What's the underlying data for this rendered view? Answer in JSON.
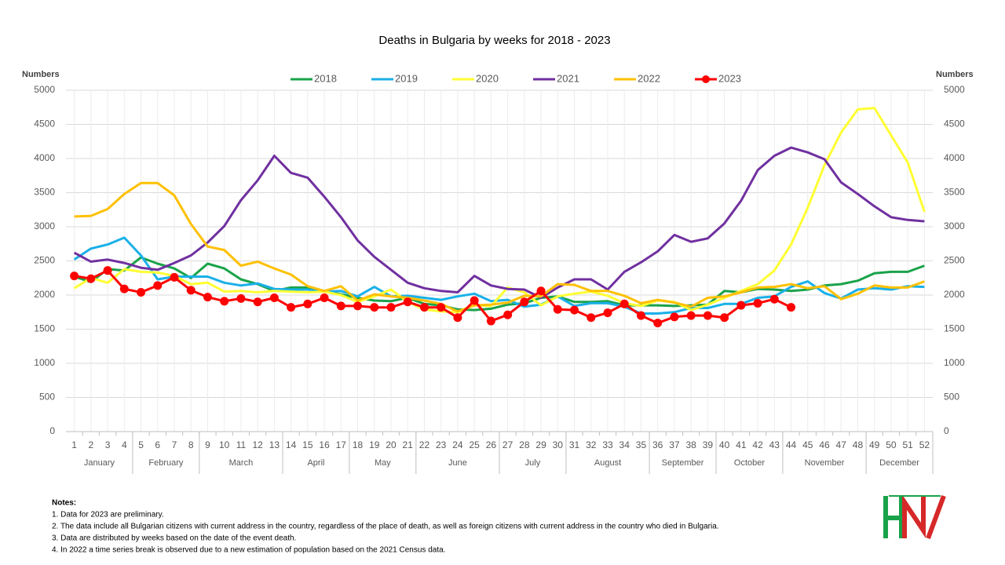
{
  "chart_data": {
    "type": "line",
    "title": "Deaths in Bulgaria by weeks for 2018 - 2023",
    "ylabel": "Numbers",
    "y2label": "Numbers",
    "categories": [
      1,
      2,
      3,
      4,
      5,
      6,
      7,
      8,
      9,
      10,
      11,
      12,
      13,
      14,
      15,
      16,
      17,
      18,
      19,
      20,
      21,
      22,
      23,
      24,
      25,
      26,
      27,
      28,
      29,
      30,
      31,
      32,
      33,
      34,
      35,
      36,
      37,
      38,
      39,
      40,
      41,
      42,
      43,
      44,
      45,
      46,
      47,
      48,
      49,
      50,
      51,
      52
    ],
    "month_groups": [
      {
        "label": "January",
        "from": 1,
        "to": 4
      },
      {
        "label": "February",
        "from": 5,
        "to": 8
      },
      {
        "label": "March",
        "from": 9,
        "to": 13
      },
      {
        "label": "April",
        "from": 14,
        "to": 17
      },
      {
        "label": "May",
        "from": 18,
        "to": 21
      },
      {
        "label": "June",
        "from": 22,
        "to": 26
      },
      {
        "label": "July",
        "from": 27,
        "to": 30
      },
      {
        "label": "August",
        "from": 31,
        "to": 35
      },
      {
        "label": "September",
        "from": 36,
        "to": 39
      },
      {
        "label": "October",
        "from": 40,
        "to": 43
      },
      {
        "label": "November",
        "from": 44,
        "to": 48
      },
      {
        "label": "December",
        "from": 49,
        "to": 52
      }
    ],
    "ylim": [
      0,
      5000
    ],
    "yticks": [
      0,
      500,
      1000,
      1500,
      2000,
      2500,
      3000,
      3500,
      4000,
      4500,
      5000
    ],
    "y2lim": [
      0,
      5000
    ],
    "y2ticks": [
      0,
      500,
      1000,
      1500,
      2000,
      2500,
      3000,
      3500,
      4000,
      4500,
      5000
    ],
    "grid": true,
    "legend": "top",
    "series": [
      {
        "name": "2018",
        "color": "#1aa34a",
        "values": [
          2270,
          2190,
          2380,
          2360,
          2550,
          2460,
          2390,
          2250,
          2460,
          2390,
          2230,
          2160,
          2060,
          2110,
          2110,
          2060,
          2010,
          1960,
          1920,
          1910,
          1960,
          1870,
          1850,
          1790,
          1780,
          1800,
          1860,
          1880,
          1960,
          1980,
          1900,
          1900,
          1910,
          1850,
          1850,
          1850,
          1840,
          1850,
          1860,
          2060,
          2040,
          2090,
          2080,
          2060,
          2080,
          2140,
          2160,
          2210,
          2320,
          2340,
          2340,
          2430
        ]
      },
      {
        "name": "2019",
        "color": "#1ab0e8",
        "values": [
          2520,
          2680,
          2740,
          2840,
          2580,
          2230,
          2270,
          2270,
          2270,
          2180,
          2140,
          2170,
          2090,
          2080,
          2080,
          2050,
          2060,
          1980,
          2120,
          1980,
          1990,
          1960,
          1930,
          1980,
          2020,
          1910,
          1930,
          1830,
          1860,
          1980,
          1840,
          1880,
          1880,
          1830,
          1730,
          1730,
          1750,
          1810,
          1810,
          1870,
          1870,
          1960,
          1980,
          2120,
          2200,
          2030,
          1950,
          2080,
          2100,
          2080,
          2130,
          2120
        ]
      },
      {
        "name": "2020",
        "color": "#ffff33",
        "values": [
          2100,
          2250,
          2180,
          2380,
          2340,
          2330,
          2280,
          2160,
          2180,
          2050,
          2060,
          2040,
          2060,
          2050,
          2040,
          2050,
          2000,
          1900,
          1980,
          2080,
          1900,
          1790,
          1760,
          1750,
          1850,
          1840,
          2110,
          2040,
          1850,
          1980,
          2020,
          2050,
          1990,
          1880,
          1840,
          1920,
          1900,
          1780,
          1860,
          1960,
          2060,
          2160,
          2360,
          2740,
          3280,
          3900,
          4380,
          4720,
          4740,
          4340,
          3940,
          3220
        ]
      },
      {
        "name": "2021",
        "color": "#7030a0",
        "values": [
          2620,
          2490,
          2520,
          2470,
          2400,
          2370,
          2470,
          2580,
          2770,
          3010,
          3390,
          3680,
          4040,
          3790,
          3720,
          3440,
          3140,
          2800,
          2560,
          2370,
          2180,
          2100,
          2060,
          2040,
          2280,
          2140,
          2090,
          2080,
          1960,
          2110,
          2230,
          2230,
          2080,
          2340,
          2480,
          2640,
          2880,
          2780,
          2830,
          3050,
          3380,
          3830,
          4040,
          4160,
          4090,
          3990,
          3650,
          3480,
          3300,
          3140,
          3100,
          3080
        ]
      },
      {
        "name": "2022",
        "color": "#ffc000",
        "values": [
          3150,
          3160,
          3260,
          3480,
          3640,
          3640,
          3460,
          3040,
          2710,
          2660,
          2430,
          2490,
          2390,
          2300,
          2130,
          2060,
          2130,
          1920,
          2010,
          1980,
          1960,
          1920,
          1870,
          1760,
          1850,
          1860,
          1890,
          1990,
          1980,
          2160,
          2150,
          2060,
          2060,
          1990,
          1880,
          1930,
          1890,
          1830,
          1960,
          1980,
          2040,
          2110,
          2120,
          2160,
          2100,
          2130,
          1940,
          2020,
          2140,
          2110,
          2110,
          2200
        ]
      },
      {
        "name": "2023",
        "color": "#ff0000",
        "markers": true,
        "values": [
          2280,
          2240,
          2360,
          2090,
          2040,
          2140,
          2260,
          2070,
          1970,
          1910,
          1950,
          1900,
          1960,
          1820,
          1870,
          1960,
          1840,
          1840,
          1820,
          1820,
          1900,
          1820,
          1820,
          1670,
          1920,
          1620,
          1710,
          1900,
          2060,
          1790,
          1780,
          1670,
          1740,
          1870,
          1700,
          1590,
          1680,
          1700,
          1700,
          1670,
          1850,
          1880,
          1940,
          1820,
          null,
          null,
          null,
          null,
          null,
          null,
          null,
          null
        ]
      }
    ],
    "notes_title": "Notes:",
    "notes": [
      "1. Data for 2023 are preliminary.",
      "2. The data include all Bulgarian citizens with current address in the country, regardless of the place of death, as well as foreign citizens with current address in the country who died in Bulgaria.",
      "3. Data are distributed by weeks based on the date of the event death.",
      "4. In 2022 a time series break is observed due to a new estimation of population based on the 2021 Census data."
    ]
  }
}
